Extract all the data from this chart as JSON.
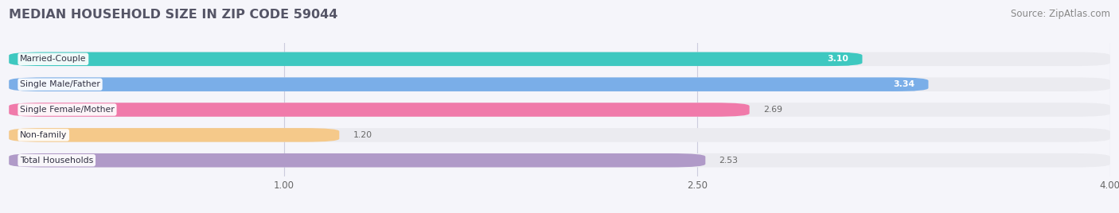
{
  "title": "MEDIAN HOUSEHOLD SIZE IN ZIP CODE 59044",
  "source": "Source: ZipAtlas.com",
  "categories": [
    "Married-Couple",
    "Single Male/Father",
    "Single Female/Mother",
    "Non-family",
    "Total Households"
  ],
  "values": [
    3.1,
    3.34,
    2.69,
    1.2,
    2.53
  ],
  "bar_colors": [
    "#3ec8c0",
    "#7aaee8",
    "#f07aaa",
    "#f5c98a",
    "#b09ac8"
  ],
  "bar_bg_color": "#ebebf0",
  "value_label_inside": [
    true,
    true,
    false,
    false,
    false
  ],
  "value_label_color_inside": "#ffffff",
  "value_label_color_outside": "#666666",
  "xmin": 0.0,
  "xmax": 4.0,
  "xticks": [
    1.0,
    2.5,
    4.0
  ],
  "background_color": "#f5f5fa",
  "title_fontsize": 11.5,
  "source_fontsize": 8.5,
  "bar_height": 0.55,
  "bar_spacing": 1.0
}
